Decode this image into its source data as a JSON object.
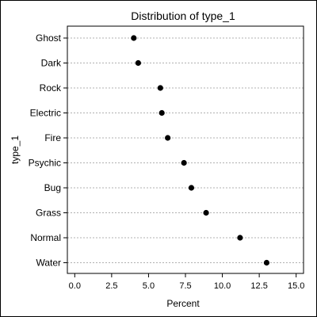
{
  "chart_data": {
    "type": "dot",
    "title": "Distribution of type_1",
    "xlabel": "Percent",
    "ylabel": "type_1",
    "xlim": [
      -0.5,
      15.5
    ],
    "xticks": [
      "0.0",
      "2.5",
      "5.0",
      "7.5",
      "10.0",
      "12.5",
      "15.0"
    ],
    "categories": [
      "Ghost",
      "Dark",
      "Rock",
      "Electric",
      "Fire",
      "Psychic",
      "Bug",
      "Grass",
      "Normal",
      "Water"
    ],
    "values": [
      4.0,
      4.3,
      5.8,
      5.9,
      6.3,
      7.4,
      7.9,
      8.9,
      11.2,
      13.0
    ],
    "grid": "horizontal dotted",
    "marker_color": "#000000"
  }
}
